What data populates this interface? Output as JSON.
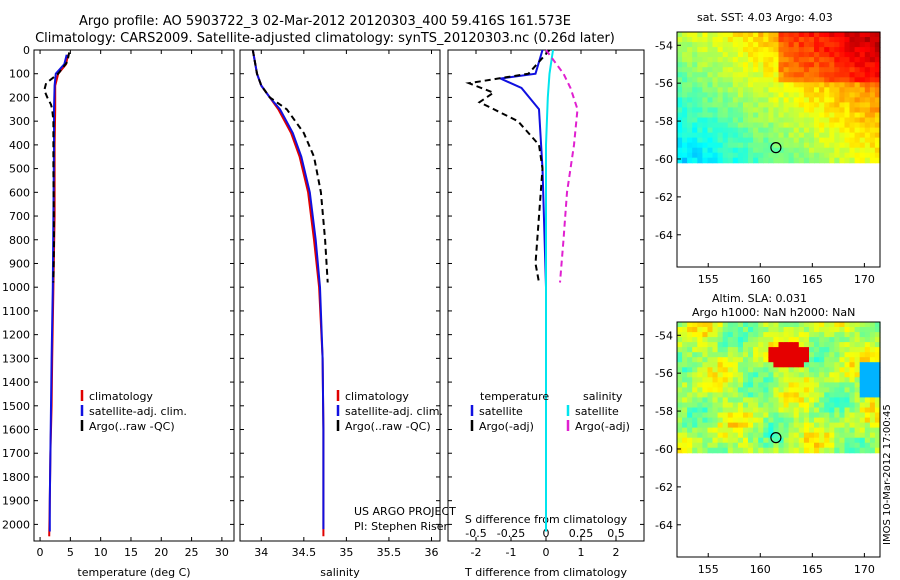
{
  "figure": {
    "title_line1": "Argo profile: AO 5903722_3 02-Mar-2012 20120303_400 59.416S 161.573E",
    "title_line2": "Climatology: CARS2009. Satellite-adjusted climatology: synTS_20120303.nc (0.26d later)",
    "side_label": "IMOS 10-Mar-2012 17:00:45",
    "project_line1": "US ARGO PROJECT",
    "project_line2": "PI: Stephen Riser"
  },
  "colors": {
    "climatology": "#e00000",
    "satellite": "#1010e0",
    "argo": "#000000",
    "sal_satellite": "#00e5ee",
    "sal_argo": "#e020d0"
  },
  "chart_data": [
    {
      "type": "line",
      "id": "temperature",
      "xlabel": "temperature (deg C)",
      "ylabel": "",
      "xlim": [
        -1,
        32
      ],
      "ylim": [
        2070,
        0
      ],
      "xticks": [
        0,
        5,
        10,
        15,
        20,
        25,
        30
      ],
      "yticks": [
        0,
        100,
        200,
        300,
        400,
        500,
        600,
        700,
        800,
        900,
        1000,
        1100,
        1200,
        1300,
        1400,
        1500,
        1600,
        1700,
        1800,
        1900,
        2000
      ],
      "legend": [
        "climatology",
        "satellite-adj. clim.",
        "Argo(..raw -QC)"
      ],
      "series": [
        {
          "name": "climatology",
          "color": "#e00000",
          "dash": "",
          "x": [
            4.6,
            4.3,
            3.0,
            2.5,
            2.5,
            2.4,
            2.4,
            2.2,
            2.0,
            1.9,
            1.7,
            1.6,
            1.5
          ],
          "y": [
            20,
            60,
            100,
            150,
            250,
            400,
            700,
            1000,
            1300,
            1500,
            1700,
            1900,
            2050
          ]
        },
        {
          "name": "satellite-adj. clim.",
          "color": "#1010e0",
          "dash": "",
          "x": [
            4.4,
            4.0,
            2.6,
            2.4,
            2.3,
            2.3,
            2.2,
            2.1,
            1.9,
            1.8,
            1.7,
            1.6,
            1.6
          ],
          "y": [
            20,
            60,
            100,
            150,
            250,
            400,
            700,
            1000,
            1300,
            1500,
            1700,
            1900,
            2030
          ]
        },
        {
          "name": "Argo(..raw -QC)",
          "color": "#000000",
          "dash": "6,4",
          "x": [
            4.8,
            4.5,
            3.0,
            1.0,
            0.7,
            1.2,
            1.8,
            2.0,
            2.2,
            2.2,
            2.3,
            2.2
          ],
          "y": [
            10,
            50,
            100,
            140,
            170,
            200,
            230,
            250,
            300,
            500,
            800,
            980
          ]
        }
      ]
    },
    {
      "type": "line",
      "id": "salinity",
      "xlabel": "salinity",
      "ylabel": "",
      "xlim": [
        33.75,
        36.1
      ],
      "ylim": [
        2070,
        0
      ],
      "xticks": [
        34,
        34.5,
        35,
        35.5,
        36
      ],
      "xticklabels": [
        "34",
        "34.5",
        "35",
        "35.5",
        "36"
      ],
      "legend": [
        "climatology",
        "satellite-adj. clim.",
        "Argo(..raw -QC)"
      ],
      "series": [
        {
          "name": "climatology",
          "color": "#e00000",
          "dash": "",
          "x": [
            33.9,
            33.95,
            34.0,
            34.1,
            34.2,
            34.35,
            34.45,
            34.55,
            34.62,
            34.68,
            34.72,
            34.73,
            34.73
          ],
          "y": [
            0,
            100,
            150,
            200,
            250,
            350,
            450,
            600,
            800,
            1000,
            1300,
            1600,
            2050
          ]
        },
        {
          "name": "satellite-adj. clim.",
          "color": "#1010e0",
          "dash": "",
          "x": [
            33.9,
            33.95,
            34.0,
            34.1,
            34.22,
            34.37,
            34.47,
            34.57,
            34.64,
            34.69,
            34.72,
            34.73,
            34.73
          ],
          "y": [
            0,
            100,
            150,
            200,
            250,
            350,
            450,
            600,
            800,
            1000,
            1300,
            1600,
            2020
          ]
        },
        {
          "name": "Argo(..raw -QC)",
          "color": "#000000",
          "dash": "6,4",
          "x": [
            33.9,
            33.95,
            34.0,
            34.1,
            34.3,
            34.5,
            34.62,
            34.7,
            34.75,
            34.78
          ],
          "y": [
            0,
            100,
            150,
            200,
            250,
            350,
            450,
            600,
            800,
            980
          ]
        }
      ]
    },
    {
      "type": "line",
      "id": "difference",
      "xlabel": "T difference from climatology",
      "xlabel_top": "S difference from climatology",
      "ylabel": "",
      "xlim": [
        -2.8,
        2.8
      ],
      "ylim": [
        2070,
        0
      ],
      "xticks": [
        -2,
        -1,
        0,
        1,
        2
      ],
      "xticks_s": [
        -0.5,
        -0.25,
        0,
        0.25,
        0.5
      ],
      "xticklabels_s": [
        "-0.5",
        "-0.25",
        "0",
        "0.25",
        "0.5"
      ],
      "legend_temperature_header": "temperature",
      "legend_salinity_header": "salinity",
      "legend_temperature": [
        "satellite",
        "Argo(-adj)"
      ],
      "legend_salinity": [
        "satellite",
        "Argo(-adj)"
      ],
      "series": [
        {
          "name": "T satellite",
          "color": "#1010e0",
          "dash": "",
          "x": [
            -0.1,
            -0.3,
            -1.3,
            -0.7,
            -0.2,
            -0.1,
            0.0,
            0.0,
            0.0
          ],
          "y": [
            0,
            100,
            120,
            160,
            250,
            500,
            1000,
            1500,
            2030
          ]
        },
        {
          "name": "T Argo(-adj)",
          "color": "#000000",
          "dash": "6,4",
          "x": [
            0.1,
            -0.5,
            -2.2,
            -1.5,
            -1.9,
            -0.8,
            -0.2,
            -0.1,
            -0.2,
            -0.3,
            -0.2
          ],
          "y": [
            0,
            100,
            140,
            180,
            220,
            300,
            400,
            500,
            700,
            900,
            980
          ]
        },
        {
          "name": "S satellite",
          "color": "#00e5ee",
          "dash": "",
          "x": [
            0.2,
            0.1,
            0.05,
            0.0,
            0.0,
            0.0
          ],
          "y": [
            0,
            100,
            200,
            400,
            1000,
            2030
          ]
        },
        {
          "name": "S Argo(-adj)",
          "color": "#e020d0",
          "dash": "6,4",
          "x": [
            0.0,
            0.5,
            0.7,
            0.9,
            0.8,
            0.6,
            0.5,
            0.4
          ],
          "y": [
            0,
            100,
            160,
            250,
            400,
            600,
            800,
            980
          ]
        }
      ]
    },
    {
      "type": "heatmap",
      "id": "sst_map",
      "title": "sat. SST: 4.03 Argo: 4.03",
      "xlim": [
        152,
        171.5
      ],
      "ylim": [
        -65.7,
        -53.3
      ],
      "xticks": [
        155,
        160,
        165,
        170
      ],
      "yticks": [
        -54,
        -56,
        -58,
        -60,
        -62,
        -64
      ],
      "marker": {
        "lon": 161.5,
        "lat": -59.4
      }
    },
    {
      "type": "heatmap",
      "id": "sla_map",
      "title": "Altim. SLA: 0.031",
      "subtitle": "Argo h1000: NaN h2000: NaN",
      "xlim": [
        152,
        171.5
      ],
      "ylim": [
        -65.7,
        -53.3
      ],
      "xticks": [
        155,
        160,
        165,
        170
      ],
      "yticks": [
        -54,
        -56,
        -58,
        -60,
        -62,
        -64
      ],
      "marker": {
        "lon": 161.5,
        "lat": -59.4
      }
    }
  ]
}
